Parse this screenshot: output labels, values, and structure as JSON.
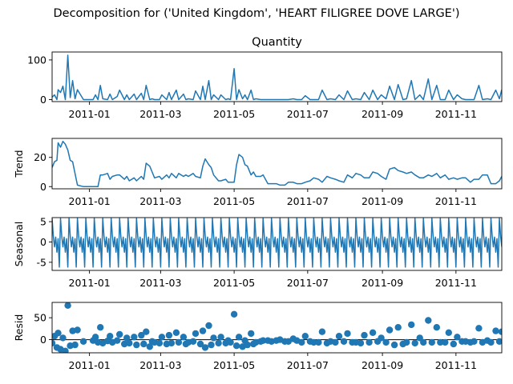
{
  "figure": {
    "suptitle": "Decomposition for ('United Kingdom', 'HEART FILIGREE DOVE LARGE')"
  },
  "chart_data": [
    {
      "type": "line",
      "title": "Quantity",
      "ylabel": "",
      "xlim": [
        "2010-12-01",
        "2011-12-09"
      ],
      "ylim": [
        -5,
        120
      ],
      "yticks": [
        0,
        100
      ],
      "xtick_labels": [
        "2011-01",
        "2011-03",
        "2011-05",
        "2011-07",
        "2011-09",
        "2011-11"
      ],
      "grid": false,
      "color": "#1f77b4",
      "x": [
        "2010-12-01",
        "2010-12-03",
        "2010-12-05",
        "2010-12-06",
        "2010-12-08",
        "2010-12-10",
        "2010-12-12",
        "2010-12-14",
        "2010-12-16",
        "2010-12-18",
        "2010-12-20",
        "2010-12-22",
        "2010-12-27",
        "2011-01-04",
        "2011-01-06",
        "2011-01-08",
        "2011-01-10",
        "2011-01-12",
        "2011-01-16",
        "2011-01-18",
        "2011-01-20",
        "2011-01-24",
        "2011-01-26",
        "2011-01-30",
        "2011-02-01",
        "2011-02-03",
        "2011-02-07",
        "2011-02-09",
        "2011-02-13",
        "2011-02-15",
        "2011-02-17",
        "2011-02-20",
        "2011-02-22",
        "2011-02-24",
        "2011-02-28",
        "2011-03-02",
        "2011-03-06",
        "2011-03-08",
        "2011-03-10",
        "2011-03-14",
        "2011-03-16",
        "2011-03-20",
        "2011-03-22",
        "2011-03-24",
        "2011-03-28",
        "2011-03-30",
        "2011-04-03",
        "2011-04-05",
        "2011-04-07",
        "2011-04-10",
        "2011-04-12",
        "2011-04-14",
        "2011-04-18",
        "2011-04-20",
        "2011-04-24",
        "2011-04-26",
        "2011-04-28",
        "2011-05-01",
        "2011-05-03",
        "2011-05-05",
        "2011-05-08",
        "2011-05-10",
        "2011-05-12",
        "2011-05-15",
        "2011-05-17",
        "2011-05-19",
        "2011-05-23",
        "2011-05-25",
        "2011-05-29",
        "2011-06-01",
        "2011-06-05",
        "2011-06-08",
        "2011-06-12",
        "2011-06-15",
        "2011-06-19",
        "2011-06-22",
        "2011-06-26",
        "2011-06-29",
        "2011-07-03",
        "2011-07-06",
        "2011-07-10",
        "2011-07-13",
        "2011-07-17",
        "2011-07-20",
        "2011-07-24",
        "2011-07-27",
        "2011-07-31",
        "2011-08-03",
        "2011-08-07",
        "2011-08-10",
        "2011-08-14",
        "2011-08-17",
        "2011-08-21",
        "2011-08-24",
        "2011-08-28",
        "2011-08-31",
        "2011-09-04",
        "2011-09-07",
        "2011-09-11",
        "2011-09-14",
        "2011-09-18",
        "2011-09-21",
        "2011-09-25",
        "2011-09-28",
        "2011-10-02",
        "2011-10-05",
        "2011-10-09",
        "2011-10-12",
        "2011-10-16",
        "2011-10-19",
        "2011-10-23",
        "2011-10-26",
        "2011-10-30",
        "2011-11-02",
        "2011-11-06",
        "2011-11-09",
        "2011-11-13",
        "2011-11-16",
        "2011-11-20",
        "2011-11-23",
        "2011-11-27",
        "2011-11-30",
        "2011-12-04",
        "2011-12-07",
        "2011-12-09"
      ],
      "values": [
        6,
        12,
        0,
        25,
        18,
        34,
        0,
        112,
        5,
        48,
        2,
        25,
        0,
        0,
        12,
        0,
        36,
        2,
        0,
        14,
        0,
        8,
        24,
        0,
        12,
        0,
        14,
        0,
        16,
        0,
        36,
        0,
        2,
        0,
        0,
        12,
        0,
        18,
        0,
        24,
        0,
        14,
        0,
        2,
        0,
        22,
        0,
        34,
        0,
        48,
        0,
        12,
        0,
        12,
        0,
        2,
        0,
        78,
        0,
        25,
        2,
        12,
        0,
        24,
        0,
        2,
        0,
        0,
        0,
        0,
        0,
        0,
        0,
        0,
        2,
        0,
        0,
        10,
        0,
        0,
        0,
        24,
        0,
        2,
        0,
        12,
        0,
        22,
        0,
        2,
        0,
        18,
        0,
        24,
        0,
        12,
        2,
        34,
        0,
        38,
        0,
        2,
        48,
        0,
        12,
        0,
        52,
        0,
        36,
        0,
        0,
        24,
        0,
        12,
        2,
        0,
        0,
        0,
        36,
        0,
        2,
        0,
        24,
        2,
        25
      ]
    },
    {
      "type": "line",
      "title": "",
      "ylabel": "Trend",
      "xlim": [
        "2010-12-01",
        "2011-12-09"
      ],
      "ylim": [
        -1.5,
        33
      ],
      "yticks": [
        0,
        20
      ],
      "xtick_labels": [
        "2011-01",
        "2011-03",
        "2011-05",
        "2011-07",
        "2011-09",
        "2011-11"
      ],
      "grid": false,
      "color": "#1f77b4",
      "x": [
        "2010-12-01",
        "2010-12-03",
        "2010-12-05",
        "2010-12-06",
        "2010-12-08",
        "2010-12-10",
        "2010-12-12",
        "2010-12-14",
        "2010-12-16",
        "2010-12-18",
        "2010-12-20",
        "2010-12-22",
        "2010-12-27",
        "2011-01-04",
        "2011-01-06",
        "2011-01-08",
        "2011-01-10",
        "2011-01-12",
        "2011-01-16",
        "2011-01-18",
        "2011-01-20",
        "2011-01-24",
        "2011-01-26",
        "2011-01-30",
        "2011-02-01",
        "2011-02-03",
        "2011-02-07",
        "2011-02-09",
        "2011-02-13",
        "2011-02-15",
        "2011-02-17",
        "2011-02-20",
        "2011-02-22",
        "2011-02-24",
        "2011-02-28",
        "2011-03-02",
        "2011-03-06",
        "2011-03-08",
        "2011-03-10",
        "2011-03-14",
        "2011-03-16",
        "2011-03-20",
        "2011-03-22",
        "2011-03-24",
        "2011-03-28",
        "2011-03-30",
        "2011-04-03",
        "2011-04-05",
        "2011-04-07",
        "2011-04-10",
        "2011-04-12",
        "2011-04-14",
        "2011-04-18",
        "2011-04-20",
        "2011-04-24",
        "2011-04-26",
        "2011-04-28",
        "2011-05-01",
        "2011-05-03",
        "2011-05-05",
        "2011-05-08",
        "2011-05-10",
        "2011-05-12",
        "2011-05-15",
        "2011-05-17",
        "2011-05-19",
        "2011-05-23",
        "2011-05-25",
        "2011-05-29",
        "2011-06-01",
        "2011-06-05",
        "2011-06-08",
        "2011-06-12",
        "2011-06-15",
        "2011-06-19",
        "2011-06-22",
        "2011-06-26",
        "2011-06-29",
        "2011-07-03",
        "2011-07-06",
        "2011-07-10",
        "2011-07-13",
        "2011-07-17",
        "2011-07-20",
        "2011-07-24",
        "2011-07-27",
        "2011-07-31",
        "2011-08-03",
        "2011-08-07",
        "2011-08-10",
        "2011-08-14",
        "2011-08-17",
        "2011-08-21",
        "2011-08-24",
        "2011-08-28",
        "2011-08-31",
        "2011-09-04",
        "2011-09-07",
        "2011-09-11",
        "2011-09-14",
        "2011-09-18",
        "2011-09-21",
        "2011-09-25",
        "2011-09-28",
        "2011-10-02",
        "2011-10-05",
        "2011-10-09",
        "2011-10-12",
        "2011-10-16",
        "2011-10-19",
        "2011-10-23",
        "2011-10-26",
        "2011-10-30",
        "2011-11-02",
        "2011-11-06",
        "2011-11-09",
        "2011-11-13",
        "2011-11-16",
        "2011-11-20",
        "2011-11-23",
        "2011-11-27",
        "2011-11-30",
        "2011-12-04",
        "2011-12-07",
        "2011-12-09"
      ],
      "values": [
        13,
        17,
        18,
        30,
        27,
        31,
        29,
        25,
        18,
        17,
        9,
        1,
        0,
        0,
        0,
        0,
        8,
        8,
        9,
        5,
        7,
        8,
        8,
        5,
        7,
        4,
        6,
        4,
        7,
        5,
        16,
        14,
        10,
        6,
        7,
        5,
        8,
        6,
        9,
        6,
        9,
        7,
        8,
        7,
        9,
        7,
        6,
        14,
        19,
        15,
        13,
        8,
        4,
        4,
        5,
        3,
        3,
        3,
        15,
        22,
        20,
        15,
        14,
        8,
        10,
        7,
        7,
        8,
        2,
        2,
        2,
        1,
        1,
        3,
        3,
        2,
        2,
        3,
        4,
        6,
        5,
        3,
        7,
        6,
        5,
        4,
        3,
        8,
        6,
        9,
        8,
        6,
        6,
        10,
        9,
        7,
        5,
        12,
        13,
        11,
        10,
        9,
        10,
        8,
        6,
        6,
        8,
        7,
        9,
        6,
        8,
        5,
        6,
        5,
        6,
        6,
        3,
        5,
        5,
        8,
        8,
        2,
        2,
        4,
        7
      ]
    },
    {
      "type": "line",
      "title": "",
      "ylabel": "Seasonal",
      "xlim": [
        "2010-12-01",
        "2011-12-09"
      ],
      "ylim": [
        -7,
        6
      ],
      "yticks": [
        -5,
        0,
        5
      ],
      "xtick_labels": [
        "2011-01",
        "2011-03",
        "2011-05",
        "2011-07",
        "2011-09",
        "2011-11"
      ],
      "grid": false,
      "color": "#1f77b4",
      "pattern": [
        5.8,
        1.5,
        -1.2,
        1.2,
        -2.5,
        0.8,
        -6.2
      ],
      "note_period": "7"
    },
    {
      "type": "scatter",
      "title": "",
      "ylabel": "Resid",
      "xlim": [
        "2010-12-01",
        "2011-12-09"
      ],
      "ylim": [
        -30,
        85
      ],
      "yticks": [
        0,
        50
      ],
      "xtick_labels": [
        "2011-01",
        "2011-03",
        "2011-05",
        "2011-07",
        "2011-09",
        "2011-11"
      ],
      "grid": false,
      "color": "#1f77b4",
      "x": [
        "2010-12-01",
        "2010-12-03",
        "2010-12-05",
        "2010-12-06",
        "2010-12-08",
        "2010-12-10",
        "2010-12-12",
        "2010-12-14",
        "2010-12-16",
        "2010-12-18",
        "2010-12-20",
        "2010-12-22",
        "2010-12-27",
        "2011-01-04",
        "2011-01-06",
        "2011-01-08",
        "2011-01-10",
        "2011-01-12",
        "2011-01-16",
        "2011-01-18",
        "2011-01-20",
        "2011-01-24",
        "2011-01-26",
        "2011-01-30",
        "2011-02-01",
        "2011-02-03",
        "2011-02-07",
        "2011-02-09",
        "2011-02-13",
        "2011-02-15",
        "2011-02-17",
        "2011-02-20",
        "2011-02-22",
        "2011-02-24",
        "2011-02-28",
        "2011-03-02",
        "2011-03-06",
        "2011-03-08",
        "2011-03-10",
        "2011-03-14",
        "2011-03-16",
        "2011-03-20",
        "2011-03-22",
        "2011-03-24",
        "2011-03-28",
        "2011-03-30",
        "2011-04-03",
        "2011-04-05",
        "2011-04-07",
        "2011-04-10",
        "2011-04-12",
        "2011-04-14",
        "2011-04-18",
        "2011-04-20",
        "2011-04-24",
        "2011-04-26",
        "2011-04-28",
        "2011-05-01",
        "2011-05-03",
        "2011-05-05",
        "2011-05-08",
        "2011-05-10",
        "2011-05-12",
        "2011-05-15",
        "2011-05-17",
        "2011-05-19",
        "2011-05-23",
        "2011-05-25",
        "2011-05-29",
        "2011-06-01",
        "2011-06-05",
        "2011-06-08",
        "2011-06-12",
        "2011-06-15",
        "2011-06-19",
        "2011-06-22",
        "2011-06-26",
        "2011-06-29",
        "2011-07-03",
        "2011-07-06",
        "2011-07-10",
        "2011-07-13",
        "2011-07-17",
        "2011-07-20",
        "2011-07-24",
        "2011-07-27",
        "2011-07-31",
        "2011-08-03",
        "2011-08-07",
        "2011-08-10",
        "2011-08-14",
        "2011-08-17",
        "2011-08-21",
        "2011-08-24",
        "2011-08-28",
        "2011-08-31",
        "2011-09-04",
        "2011-09-07",
        "2011-09-11",
        "2011-09-14",
        "2011-09-18",
        "2011-09-21",
        "2011-09-25",
        "2011-09-28",
        "2011-10-02",
        "2011-10-05",
        "2011-10-09",
        "2011-10-12",
        "2011-10-16",
        "2011-10-19",
        "2011-10-23",
        "2011-10-26",
        "2011-10-30",
        "2011-11-02",
        "2011-11-06",
        "2011-11-09",
        "2011-11-13",
        "2011-11-16",
        "2011-11-20",
        "2011-11-23",
        "2011-11-27",
        "2011-11-30",
        "2011-12-04",
        "2011-12-07",
        "2011-12-09"
      ],
      "values": [
        -8,
        8,
        -18,
        15,
        -22,
        4,
        -26,
        78,
        -14,
        20,
        -12,
        22,
        -4,
        -2,
        6,
        -6,
        28,
        -8,
        -3,
        8,
        -6,
        -2,
        12,
        -10,
        4,
        -8,
        6,
        -12,
        10,
        -10,
        18,
        -16,
        -4,
        -6,
        -8,
        6,
        -10,
        10,
        -8,
        16,
        -6,
        6,
        -10,
        -6,
        -4,
        14,
        -10,
        20,
        -18,
        32,
        -12,
        4,
        -8,
        6,
        -8,
        -2,
        -6,
        58,
        -14,
        6,
        -16,
        -2,
        -12,
        14,
        -10,
        -6,
        -4,
        -2,
        -2,
        -4,
        -2,
        0,
        -4,
        -4,
        2,
        -2,
        -6,
        8,
        -4,
        -6,
        -6,
        18,
        -8,
        -4,
        -6,
        8,
        -4,
        14,
        -6,
        -6,
        -8,
        10,
        -6,
        16,
        -4,
        4,
        -6,
        22,
        -12,
        28,
        -10,
        -6,
        34,
        -8,
        4,
        -6,
        44,
        -6,
        28,
        -6,
        -6,
        16,
        -10,
        6,
        -4,
        -4,
        -6,
        -4,
        26,
        -6,
        -2,
        -6,
        20,
        -4,
        18
      ]
    }
  ]
}
